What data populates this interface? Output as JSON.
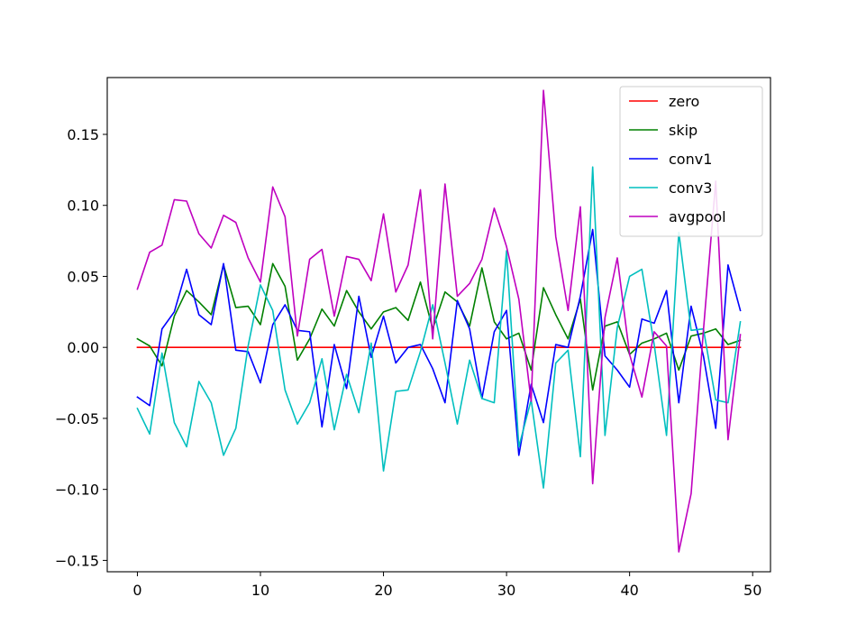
{
  "chart_data": {
    "type": "line",
    "title": "",
    "xlabel": "",
    "ylabel": "",
    "xlim": [
      -2.45,
      51.45
    ],
    "ylim": [
      -0.158,
      0.19
    ],
    "xticks": [
      0,
      10,
      20,
      30,
      40,
      50
    ],
    "xtick_labels": [
      "0",
      "10",
      "20",
      "30",
      "40",
      "50"
    ],
    "yticks": [
      -0.15,
      -0.1,
      -0.05,
      0.0,
      0.05,
      0.1,
      0.15
    ],
    "ytick_labels": [
      "−0.15",
      "−0.10",
      "−0.05",
      "0.00",
      "0.05",
      "0.10",
      "0.15"
    ],
    "grid": false,
    "legend_position": "top-right",
    "x": [
      0,
      1,
      2,
      3,
      4,
      5,
      6,
      7,
      8,
      9,
      10,
      11,
      12,
      13,
      14,
      15,
      16,
      17,
      18,
      19,
      20,
      21,
      22,
      23,
      24,
      25,
      26,
      27,
      28,
      29,
      30,
      31,
      32,
      33,
      34,
      35,
      36,
      37,
      38,
      39,
      40,
      41,
      42,
      43,
      44,
      45,
      46,
      47,
      48,
      49
    ],
    "series": [
      {
        "name": "zero",
        "color": "#ff0000",
        "values": [
          0,
          0,
          0,
          0,
          0,
          0,
          0,
          0,
          0,
          0,
          0,
          0,
          0,
          0,
          0,
          0,
          0,
          0,
          0,
          0,
          0,
          0,
          0,
          0,
          0,
          0,
          0,
          0,
          0,
          0,
          0,
          0,
          0,
          0,
          0,
          0,
          0,
          0,
          0,
          0,
          0,
          0,
          0,
          0,
          0,
          0,
          0,
          0,
          0,
          0
        ]
      },
      {
        "name": "skip",
        "color": "#008000",
        "values": [
          0.006,
          0.001,
          -0.013,
          0.022,
          0.04,
          0.032,
          0.023,
          0.058,
          0.028,
          0.029,
          0.016,
          0.059,
          0.043,
          -0.009,
          0.006,
          0.027,
          0.015,
          0.04,
          0.025,
          0.013,
          0.025,
          0.028,
          0.019,
          0.046,
          0.013,
          0.039,
          0.032,
          0.015,
          0.056,
          0.018,
          0.006,
          0.01,
          -0.016,
          0.042,
          0.023,
          0.006,
          0.034,
          -0.03,
          0.015,
          0.018,
          -0.005,
          0.003,
          0.006,
          0.01,
          -0.016,
          0.008,
          0.01,
          0.013,
          0.002,
          0.005
        ]
      },
      {
        "name": "conv1",
        "color": "#0000ff",
        "values": [
          -0.035,
          -0.041,
          0.013,
          0.025,
          0.055,
          0.023,
          0.016,
          0.059,
          -0.002,
          -0.003,
          -0.025,
          0.016,
          0.03,
          0.012,
          0.011,
          -0.056,
          0.002,
          -0.029,
          0.036,
          -0.007,
          0.022,
          -0.011,
          0.0,
          0.002,
          -0.015,
          -0.039,
          0.033,
          0.013,
          -0.036,
          0.011,
          0.026,
          -0.076,
          -0.026,
          -0.053,
          0.002,
          0.0,
          0.036,
          0.083,
          -0.006,
          -0.016,
          -0.028,
          0.02,
          0.017,
          0.04,
          -0.039,
          0.029,
          -0.006,
          -0.057,
          0.058,
          0.026
        ]
      },
      {
        "name": "conv3",
        "color": "#00bfbf",
        "values": [
          -0.043,
          -0.061,
          -0.004,
          -0.053,
          -0.07,
          -0.024,
          -0.039,
          -0.076,
          -0.057,
          0.001,
          0.044,
          0.026,
          -0.03,
          -0.054,
          -0.039,
          -0.008,
          -0.058,
          -0.019,
          -0.046,
          0.003,
          -0.087,
          -0.031,
          -0.03,
          -0.003,
          0.03,
          -0.011,
          -0.054,
          -0.009,
          -0.036,
          -0.039,
          0.068,
          -0.07,
          -0.037,
          -0.099,
          -0.011,
          -0.002,
          -0.077,
          0.127,
          -0.062,
          0.014,
          0.05,
          0.055,
          0.002,
          -0.062,
          0.081,
          0.012,
          0.013,
          -0.037,
          -0.039,
          0.018
        ]
      },
      {
        "name": "avgpool",
        "color": "#bf00bf",
        "values": [
          0.041,
          0.067,
          0.072,
          0.104,
          0.103,
          0.08,
          0.07,
          0.093,
          0.088,
          0.063,
          0.046,
          0.113,
          0.092,
          0.008,
          0.062,
          0.069,
          0.022,
          0.064,
          0.062,
          0.047,
          0.094,
          0.039,
          0.058,
          0.111,
          0.006,
          0.115,
          0.036,
          0.045,
          0.062,
          0.098,
          0.071,
          0.034,
          -0.038,
          0.181,
          0.078,
          0.026,
          0.099,
          -0.096,
          0.021,
          0.063,
          -0.005,
          -0.035,
          0.011,
          0.001,
          -0.144,
          -0.103,
          0.012,
          0.117,
          -0.065,
          0.009
        ]
      }
    ]
  }
}
